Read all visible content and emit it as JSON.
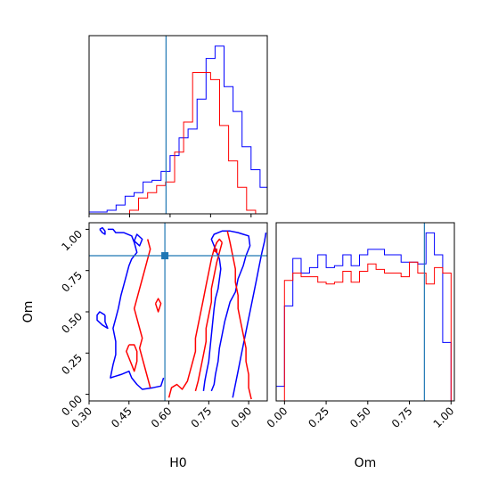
{
  "chart_data": [
    {
      "type": "histogram",
      "panel": "H0-marginal",
      "xlim": [
        0.3,
        0.96
      ],
      "truth": 0.585,
      "series": [
        {
          "color": "#0000ff",
          "bins": [
            0.3,
            0.3333,
            0.3667,
            0.4,
            0.4333,
            0.4667,
            0.5,
            0.5333,
            0.5667,
            0.6,
            0.6333,
            0.6667,
            0.7,
            0.7333,
            0.7667,
            0.8,
            0.8333,
            0.8667,
            0.9,
            0.9333,
            0.96
          ],
          "counts": [
            1,
            1,
            2,
            5,
            10,
            12,
            18,
            19,
            24,
            33,
            43,
            48,
            65,
            88,
            95,
            72,
            58,
            38,
            25,
            15
          ]
        },
        {
          "color": "#ff0000",
          "bins": [
            0.45,
            0.4833,
            0.5167,
            0.55,
            0.5833,
            0.6167,
            0.65,
            0.6833,
            0.7167,
            0.75,
            0.7833,
            0.8167,
            0.85,
            0.8833,
            0.9167
          ],
          "counts": [
            2,
            9,
            12,
            16,
            18,
            35,
            52,
            80,
            80,
            76,
            50,
            30,
            15,
            2
          ]
        }
      ]
    },
    {
      "type": "histogram",
      "panel": "Om-marginal",
      "xlim": [
        -0.05,
        1.02
      ],
      "truth": 0.84,
      "series": [
        {
          "color": "#0000ff",
          "bins": [
            -0.05,
            0.0,
            0.05,
            0.1,
            0.15,
            0.2,
            0.25,
            0.3,
            0.35,
            0.4,
            0.45,
            0.5,
            0.55,
            0.6,
            0.65,
            0.7,
            0.75,
            0.8,
            0.85,
            0.9,
            0.95,
            1.0
          ],
          "counts": [
            8,
            52,
            78,
            70,
            73,
            80,
            73,
            74,
            80,
            74,
            80,
            83,
            83,
            80,
            80,
            76,
            76,
            75,
            92,
            80,
            32
          ]
        },
        {
          "color": "#ff0000",
          "bins": [
            0.0,
            0.05,
            0.1,
            0.15,
            0.2,
            0.25,
            0.3,
            0.35,
            0.4,
            0.45,
            0.5,
            0.55,
            0.6,
            0.65,
            0.7,
            0.75,
            0.8,
            0.85,
            0.9,
            0.95,
            1.0
          ],
          "counts": [
            66,
            70,
            68,
            68,
            65,
            64,
            65,
            71,
            65,
            71,
            75,
            72,
            70,
            70,
            68,
            76,
            70,
            64,
            73,
            70
          ]
        }
      ]
    },
    {
      "type": "contour",
      "panel": "H0-Om-joint",
      "xlabel": "H0",
      "ylabel": "Om",
      "xlim": [
        0.3,
        0.97
      ],
      "ylim": [
        -0.04,
        1.04
      ],
      "xticks": [
        "0.30",
        "0.45",
        "0.60",
        "0.75",
        "0.90"
      ],
      "yticks": [
        "0.00",
        "0.25",
        "0.50",
        "0.75",
        "1.00"
      ],
      "truth": {
        "H0": 0.585,
        "Om": 0.84
      },
      "series": [
        {
          "color": "#0000ff",
          "contours": [
            [
              [
                0.37,
                1.0
              ],
              [
                0.39,
                1.0
              ],
              [
                0.4,
                0.98
              ],
              [
                0.43,
                0.98
              ],
              [
                0.46,
                0.96
              ],
              [
                0.47,
                0.92
              ],
              [
                0.48,
                0.86
              ],
              [
                0.46,
                0.82
              ],
              [
                0.45,
                0.78
              ],
              [
                0.44,
                0.72
              ],
              [
                0.43,
                0.66
              ],
              [
                0.42,
                0.6
              ],
              [
                0.41,
                0.52
              ],
              [
                0.4,
                0.46
              ],
              [
                0.39,
                0.4
              ],
              [
                0.4,
                0.32
              ],
              [
                0.4,
                0.24
              ],
              [
                0.39,
                0.18
              ],
              [
                0.38,
                0.1
              ],
              [
                0.42,
                0.12
              ],
              [
                0.45,
                0.14
              ],
              [
                0.46,
                0.1
              ],
              [
                0.48,
                0.06
              ],
              [
                0.5,
                0.03
              ],
              [
                0.54,
                0.04
              ],
              [
                0.57,
                0.05
              ],
              [
                0.58,
                0.1
              ]
            ],
            [
              [
                0.73,
                0.02
              ],
              [
                0.735,
                0.08
              ],
              [
                0.74,
                0.12
              ],
              [
                0.75,
                0.2
              ],
              [
                0.755,
                0.28
              ],
              [
                0.76,
                0.36
              ],
              [
                0.765,
                0.44
              ],
              [
                0.77,
                0.52
              ],
              [
                0.775,
                0.58
              ],
              [
                0.785,
                0.64
              ],
              [
                0.79,
                0.7
              ],
              [
                0.795,
                0.76
              ],
              [
                0.79,
                0.82
              ],
              [
                0.78,
                0.86
              ],
              [
                0.77,
                0.9
              ],
              [
                0.76,
                0.94
              ],
              [
                0.77,
                0.97
              ],
              [
                0.8,
                0.99
              ],
              [
                0.83,
                0.99
              ],
              [
                0.86,
                0.98
              ],
              [
                0.88,
                0.97
              ],
              [
                0.9,
                0.96
              ],
              [
                0.905,
                0.9
              ],
              [
                0.89,
                0.84
              ],
              [
                0.88,
                0.78
              ],
              [
                0.86,
                0.7
              ],
              [
                0.85,
                0.62
              ],
              [
                0.83,
                0.56
              ],
              [
                0.82,
                0.5
              ],
              [
                0.81,
                0.44
              ],
              [
                0.8,
                0.36
              ],
              [
                0.79,
                0.28
              ],
              [
                0.785,
                0.2
              ],
              [
                0.775,
                0.12
              ],
              [
                0.77,
                0.06
              ],
              [
                0.76,
                0.02
              ]
            ],
            [
              [
                0.84,
                -0.02
              ],
              [
                0.85,
                0.06
              ],
              [
                0.86,
                0.14
              ],
              [
                0.87,
                0.22
              ],
              [
                0.88,
                0.3
              ],
              [
                0.89,
                0.38
              ],
              [
                0.9,
                0.46
              ],
              [
                0.91,
                0.54
              ],
              [
                0.92,
                0.62
              ],
              [
                0.93,
                0.7
              ],
              [
                0.94,
                0.78
              ],
              [
                0.95,
                0.86
              ],
              [
                0.96,
                0.93
              ],
              [
                0.965,
                0.98
              ]
            ],
            [
              [
                0.36,
                0.48
              ],
              [
                0.34,
                0.5
              ],
              [
                0.33,
                0.48
              ],
              [
                0.33,
                0.45
              ],
              [
                0.35,
                0.42
              ],
              [
                0.37,
                0.4
              ],
              [
                0.36,
                0.44
              ],
              [
                0.36,
                0.48
              ]
            ],
            [
              [
                0.34,
                1.0
              ],
              [
                0.35,
                0.98
              ],
              [
                0.36,
                0.97
              ],
              [
                0.36,
                0.99
              ],
              [
                0.35,
                1.01
              ],
              [
                0.34,
                1.0
              ]
            ],
            [
              [
                0.47,
                0.93
              ],
              [
                0.49,
                0.9
              ],
              [
                0.5,
                0.94
              ],
              [
                0.48,
                0.97
              ],
              [
                0.47,
                0.93
              ]
            ]
          ]
        },
        {
          "color": "#ff0000",
          "contours": [
            [
              [
                0.52,
                0.94
              ],
              [
                0.53,
                0.88
              ],
              [
                0.52,
                0.82
              ],
              [
                0.51,
                0.76
              ],
              [
                0.5,
                0.7
              ],
              [
                0.49,
                0.64
              ],
              [
                0.48,
                0.58
              ],
              [
                0.47,
                0.52
              ],
              [
                0.48,
                0.46
              ],
              [
                0.49,
                0.4
              ],
              [
                0.5,
                0.34
              ],
              [
                0.49,
                0.28
              ],
              [
                0.5,
                0.22
              ],
              [
                0.51,
                0.16
              ],
              [
                0.52,
                0.1
              ],
              [
                0.53,
                0.04
              ]
            ],
            [
              [
                0.45,
                0.3
              ],
              [
                0.44,
                0.26
              ],
              [
                0.45,
                0.22
              ],
              [
                0.46,
                0.18
              ],
              [
                0.47,
                0.14
              ],
              [
                0.48,
                0.2
              ],
              [
                0.48,
                0.26
              ],
              [
                0.47,
                0.3
              ],
              [
                0.45,
                0.3
              ]
            ],
            [
              [
                0.6,
                -0.02
              ],
              [
                0.61,
                0.04
              ],
              [
                0.63,
                0.06
              ],
              [
                0.65,
                0.03
              ],
              [
                0.67,
                0.08
              ],
              [
                0.68,
                0.14
              ],
              [
                0.69,
                0.2
              ],
              [
                0.7,
                0.26
              ],
              [
                0.7,
                0.34
              ],
              [
                0.71,
                0.42
              ],
              [
                0.72,
                0.5
              ],
              [
                0.73,
                0.58
              ],
              [
                0.74,
                0.66
              ],
              [
                0.75,
                0.74
              ],
              [
                0.76,
                0.82
              ],
              [
                0.77,
                0.88
              ],
              [
                0.78,
                0.92
              ],
              [
                0.79,
                0.94
              ],
              [
                0.8,
                0.92
              ]
            ],
            [
              [
                0.8,
                0.92
              ],
              [
                0.79,
                0.86
              ],
              [
                0.78,
                0.8
              ],
              [
                0.77,
                0.72
              ],
              [
                0.76,
                0.64
              ],
              [
                0.76,
                0.56
              ],
              [
                0.75,
                0.48
              ],
              [
                0.74,
                0.4
              ],
              [
                0.74,
                0.32
              ],
              [
                0.73,
                0.24
              ],
              [
                0.72,
                0.16
              ],
              [
                0.71,
                0.08
              ],
              [
                0.7,
                0.02
              ]
            ],
            [
              [
                0.82,
                0.99
              ],
              [
                0.83,
                0.92
              ],
              [
                0.84,
                0.84
              ],
              [
                0.85,
                0.76
              ],
              [
                0.85,
                0.68
              ],
              [
                0.86,
                0.6
              ],
              [
                0.86,
                0.52
              ],
              [
                0.87,
                0.44
              ],
              [
                0.88,
                0.36
              ],
              [
                0.89,
                0.28
              ],
              [
                0.89,
                0.2
              ],
              [
                0.9,
                0.12
              ],
              [
                0.9,
                0.04
              ],
              [
                0.91,
                -0.03
              ]
            ],
            [
              [
                0.55,
                0.55
              ],
              [
                0.56,
                0.5
              ],
              [
                0.57,
                0.55
              ],
              [
                0.56,
                0.58
              ],
              [
                0.55,
                0.55
              ]
            ],
            [
              [
                0.77,
                0.87
              ],
              [
                0.78,
                0.86
              ],
              [
                0.78,
                0.88
              ],
              [
                0.77,
                0.87
              ]
            ]
          ]
        }
      ]
    }
  ]
}
